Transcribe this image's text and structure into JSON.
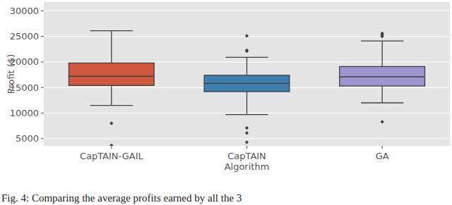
{
  "chart_data": {
    "type": "box",
    "y_label": "Profit ($)",
    "categories": [
      "CapTAIN-GAIL",
      "CapTAIN\nAlgorithm",
      "GA"
    ],
    "colors": [
      "#d0583f",
      "#3d80ae",
      "#9c95cf"
    ],
    "boxes": [
      {
        "whislo": 11500,
        "q1": 15400,
        "med": 17200,
        "q3": 19800,
        "whishi": 26100,
        "fliers": [
          8000,
          3700
        ]
      },
      {
        "whislo": 9700,
        "q1": 14200,
        "med": 15800,
        "q3": 17400,
        "whishi": 20900,
        "fliers": [
          22100,
          22300,
          25100,
          7100,
          6100,
          4300
        ]
      },
      {
        "whislo": 12000,
        "q1": 15300,
        "med": 17100,
        "q3": 19100,
        "whishi": 24100,
        "fliers": [
          25000,
          25300,
          25600,
          8300
        ]
      }
    ],
    "ylim": [
      3600,
      31700
    ],
    "yticks": [
      5000,
      10000,
      15000,
      20000,
      25000,
      30000
    ],
    "grid": true,
    "caption": "Fig. 4: Comparing the average profits earned by all the 3"
  }
}
